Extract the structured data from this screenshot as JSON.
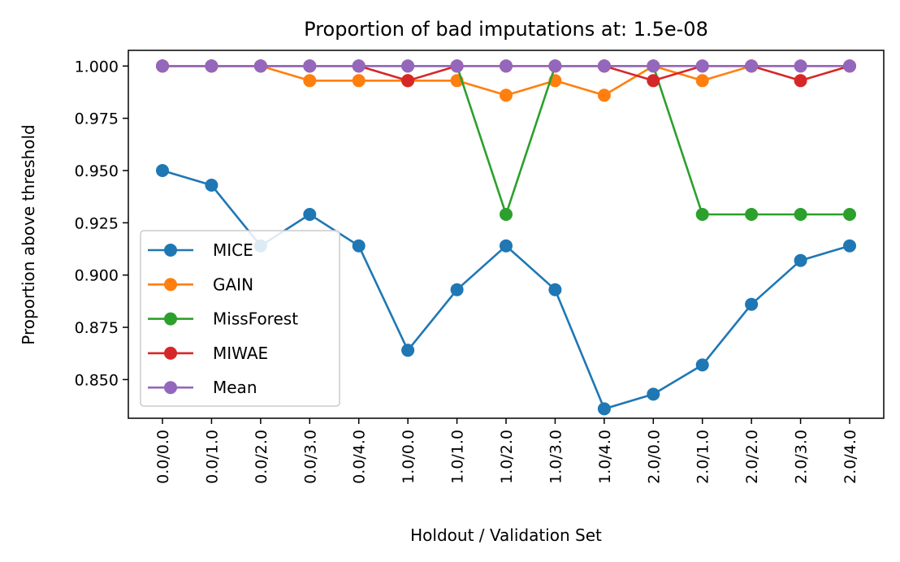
{
  "chart_data": {
    "type": "line",
    "title": "Proportion of bad imputations at: 1.5e-08",
    "xlabel": "Holdout / Validation Set",
    "ylabel": "Proportion above threshold",
    "categories": [
      "0.0/0.0",
      "0.0/1.0",
      "0.0/2.0",
      "0.0/3.0",
      "0.0/4.0",
      "1.0/0.0",
      "1.0/1.0",
      "1.0/2.0",
      "1.0/3.0",
      "1.0/4.0",
      "2.0/0.0",
      "2.0/1.0",
      "2.0/2.0",
      "2.0/3.0",
      "2.0/4.0"
    ],
    "yticks": [
      "0.850",
      "0.875",
      "0.900",
      "0.925",
      "0.950",
      "0.975",
      "1.000"
    ],
    "ylim": [
      0.8315,
      1.0075
    ],
    "grid": false,
    "legend_position": "lower-left",
    "series": [
      {
        "name": "MICE",
        "color": "#1f77b4",
        "values": [
          0.95,
          0.943,
          0.914,
          0.929,
          0.914,
          0.864,
          0.893,
          0.914,
          0.893,
          0.836,
          0.843,
          0.857,
          0.886,
          0.907,
          0.914
        ]
      },
      {
        "name": "GAIN",
        "color": "#ff7f0e",
        "values": [
          1.0,
          1.0,
          1.0,
          0.993,
          0.993,
          0.993,
          0.993,
          0.986,
          0.993,
          0.986,
          1.0,
          0.993,
          1.0,
          1.0,
          1.0
        ]
      },
      {
        "name": "MissForest",
        "color": "#2ca02c",
        "values": [
          1.0,
          1.0,
          1.0,
          1.0,
          1.0,
          1.0,
          1.0,
          0.929,
          1.0,
          1.0,
          1.0,
          0.929,
          0.929,
          0.929,
          0.929
        ]
      },
      {
        "name": "MIWAE",
        "color": "#d62728",
        "values": [
          1.0,
          1.0,
          1.0,
          1.0,
          1.0,
          0.993,
          1.0,
          1.0,
          1.0,
          1.0,
          0.993,
          1.0,
          1.0,
          0.993,
          1.0
        ]
      },
      {
        "name": "Mean",
        "color": "#9467bd",
        "values": [
          1.0,
          1.0,
          1.0,
          1.0,
          1.0,
          1.0,
          1.0,
          1.0,
          1.0,
          1.0,
          1.0,
          1.0,
          1.0,
          1.0,
          1.0
        ]
      }
    ]
  }
}
